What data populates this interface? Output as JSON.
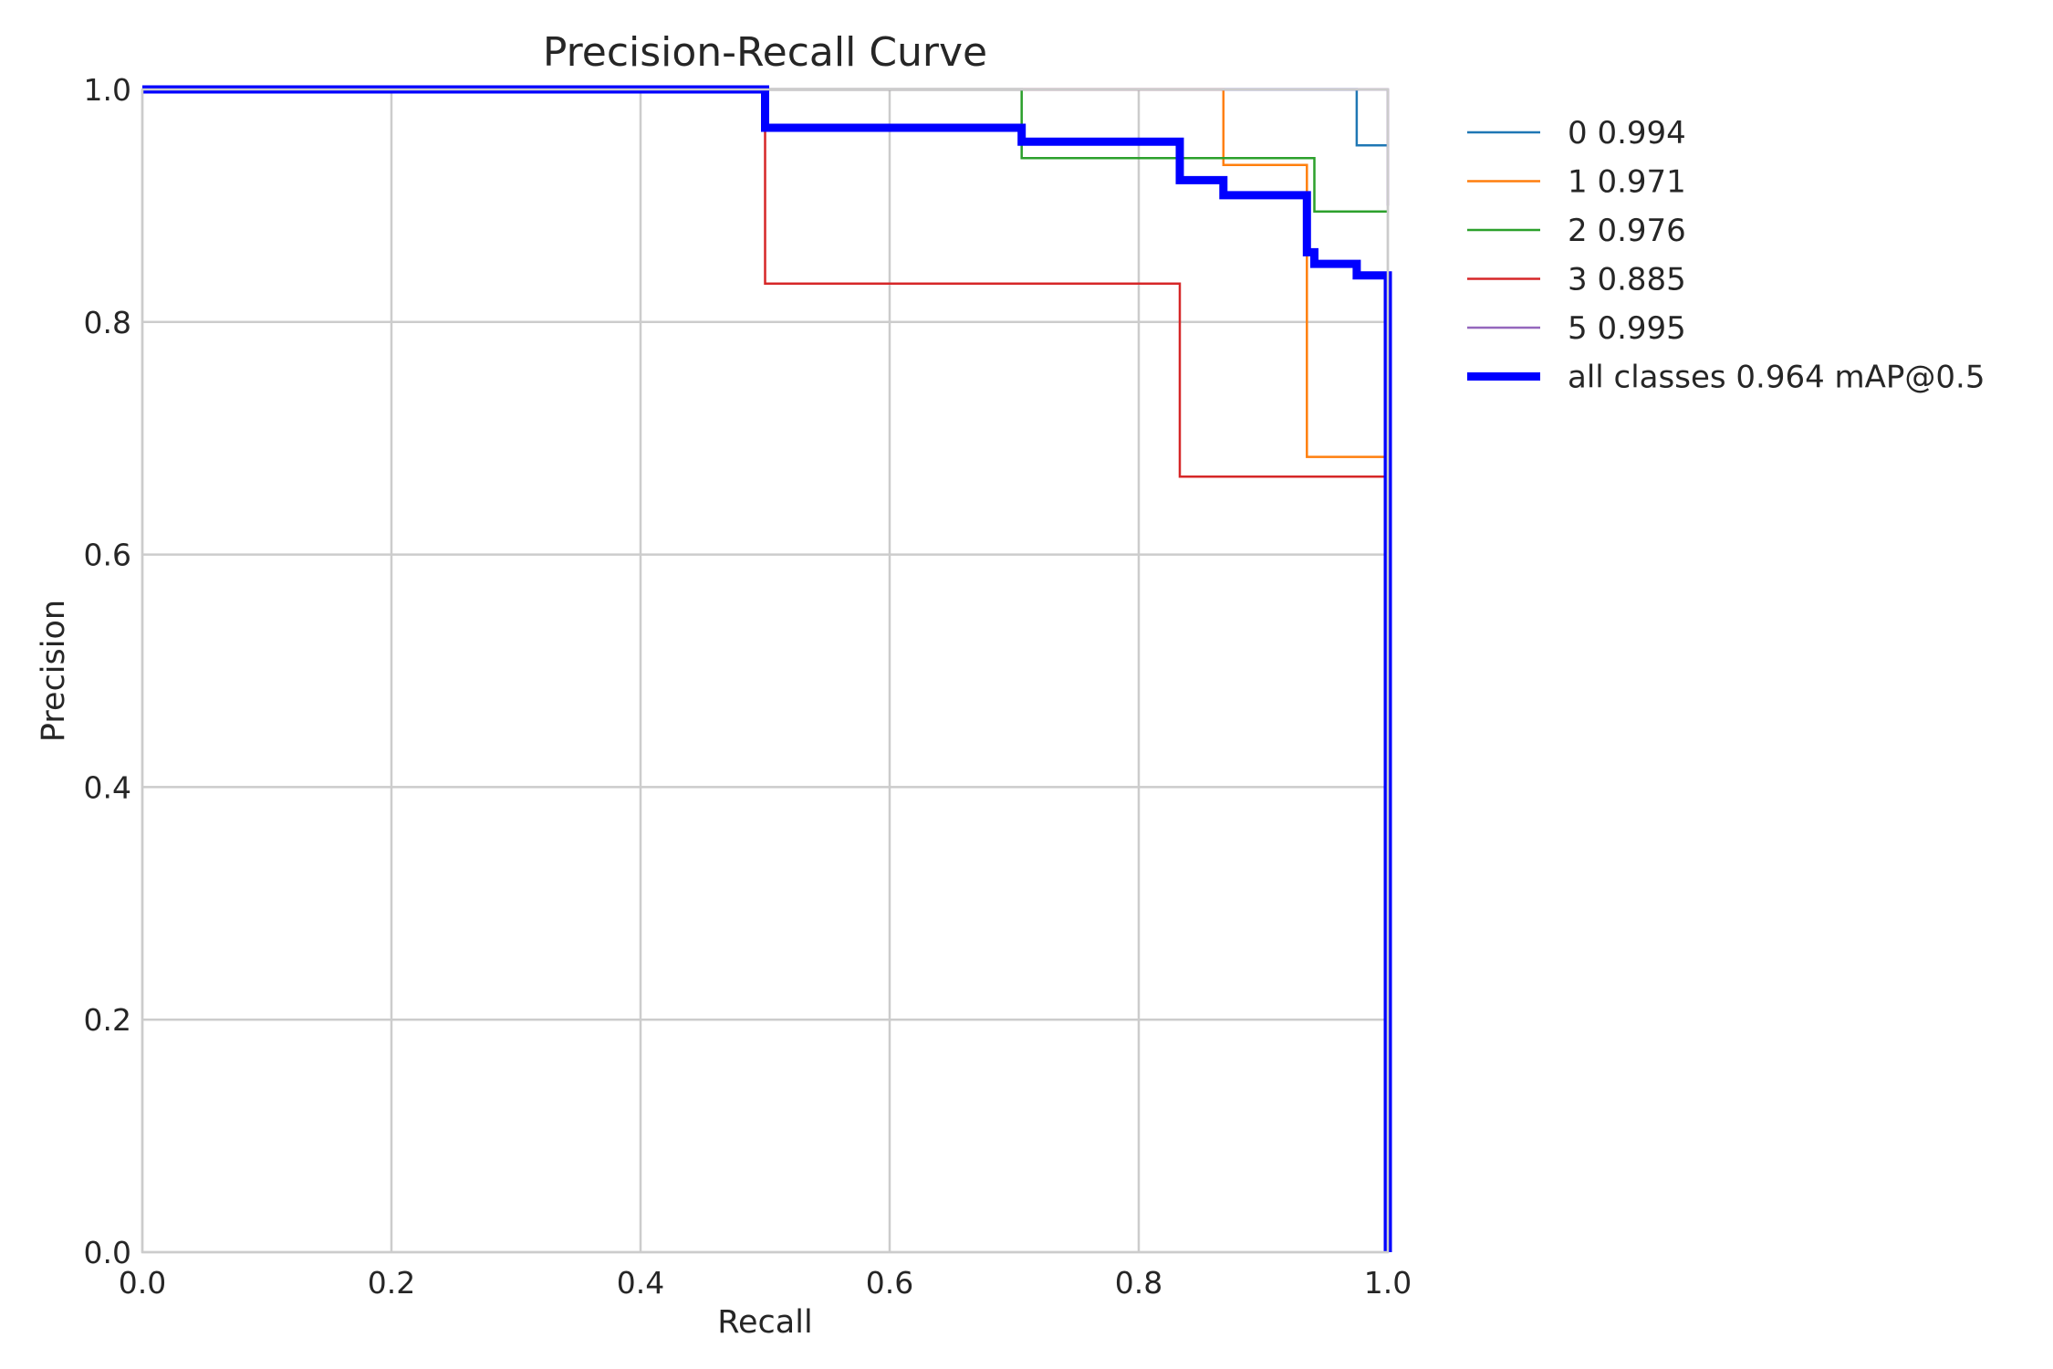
{
  "chart_data": {
    "type": "line",
    "title": "Precision-Recall Curve",
    "xlabel": "Recall",
    "ylabel": "Precision",
    "xlim": [
      0,
      1
    ],
    "ylim": [
      0,
      1
    ],
    "xticks": [
      "0.0",
      "0.2",
      "0.4",
      "0.6",
      "0.8",
      "1.0"
    ],
    "yticks": [
      "0.0",
      "0.2",
      "0.4",
      "0.6",
      "0.8",
      "1.0"
    ],
    "grid": true,
    "legend_position": "outside-right-top",
    "series": [
      {
        "name": "0 0.994",
        "color": "#1f77b4",
        "width": "thin",
        "x": [
          0,
          0.975,
          0.975,
          0.978,
          1.0
        ],
        "y": [
          1.0,
          1.0,
          0.952,
          0.952,
          0.952
        ]
      },
      {
        "name": "1 0.971",
        "color": "#ff7f0e",
        "width": "thin",
        "x": [
          0,
          0.868,
          0.868,
          0.935,
          0.935,
          1.0
        ],
        "y": [
          1.0,
          1.0,
          0.935,
          0.935,
          0.684,
          0.684
        ]
      },
      {
        "name": "2 0.976",
        "color": "#2ca02c",
        "width": "thin",
        "x": [
          0,
          0.706,
          0.706,
          0.941,
          0.941,
          1.0
        ],
        "y": [
          1.0,
          1.0,
          0.941,
          0.941,
          0.895,
          0.895
        ]
      },
      {
        "name": "3 0.885",
        "color": "#d62728",
        "width": "thin",
        "x": [
          0,
          0.5,
          0.5,
          0.833,
          0.833,
          1.0
        ],
        "y": [
          1.0,
          1.0,
          0.833,
          0.833,
          0.667,
          0.667
        ]
      },
      {
        "name": "5 0.995",
        "color": "#9467bd",
        "width": "thin",
        "x": [
          0,
          1.0,
          1.0
        ],
        "y": [
          1.0,
          1.0,
          0.9
        ]
      },
      {
        "name": "all classes 0.964 mAP@0.5",
        "color": "#0000ff",
        "width": "thick",
        "x": [
          0,
          0.5,
          0.5,
          0.706,
          0.706,
          0.833,
          0.833,
          0.868,
          0.868,
          0.935,
          0.935,
          0.941,
          0.941,
          0.975,
          0.975,
          1.0,
          1.0
        ],
        "y": [
          1.0,
          1.0,
          0.967,
          0.967,
          0.955,
          0.955,
          0.922,
          0.922,
          0.909,
          0.909,
          0.86,
          0.86,
          0.85,
          0.85,
          0.84,
          0.84,
          0.0
        ]
      }
    ]
  }
}
